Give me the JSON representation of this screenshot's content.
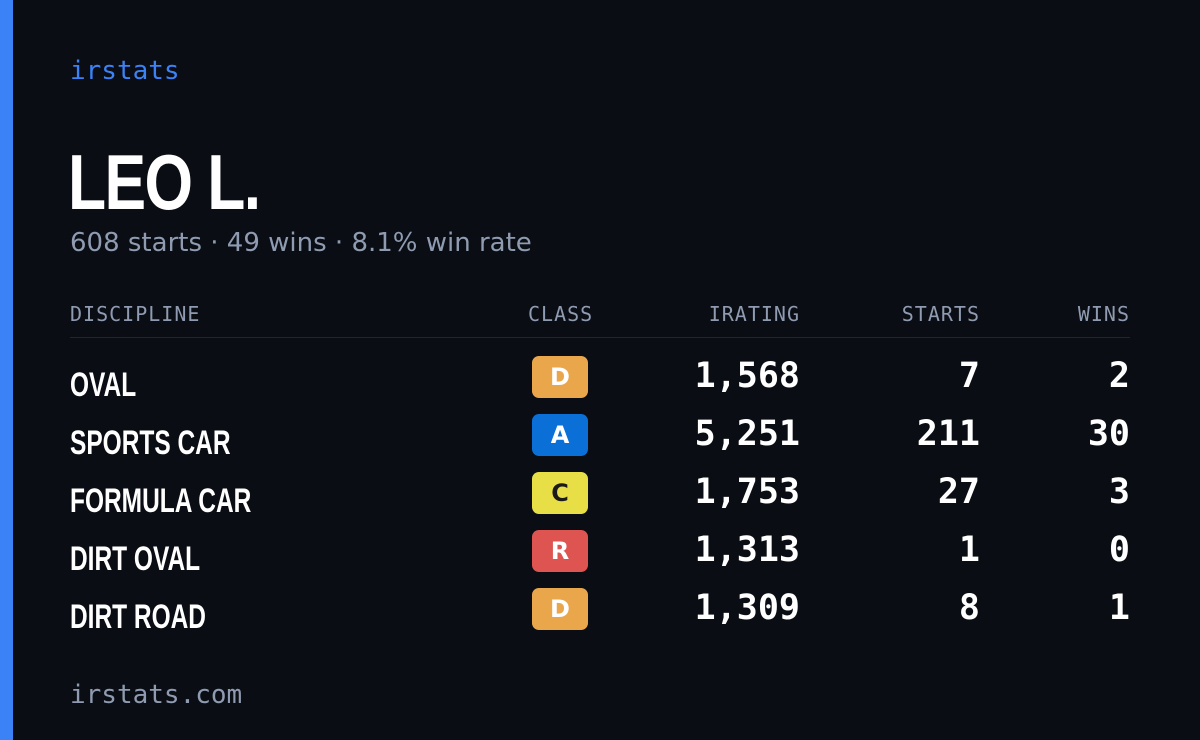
{
  "brand": "irstats",
  "driver": {
    "name": "LEO L.",
    "summary": "608 starts · 49 wins · 8.1% win rate"
  },
  "table": {
    "headers": {
      "discipline": "DISCIPLINE",
      "class": "CLASS",
      "irating": "IRATING",
      "starts": "STARTS",
      "wins": "WINS"
    },
    "rows": [
      {
        "discipline": "OVAL",
        "class": "D",
        "irating": "1,568",
        "starts": "7",
        "wins": "2"
      },
      {
        "discipline": "SPORTS CAR",
        "class": "A",
        "irating": "5,251",
        "starts": "211",
        "wins": "30"
      },
      {
        "discipline": "FORMULA CAR",
        "class": "C",
        "irating": "1,753",
        "starts": "27",
        "wins": "3"
      },
      {
        "discipline": "DIRT OVAL",
        "class": "R",
        "irating": "1,313",
        "starts": "1",
        "wins": "0"
      },
      {
        "discipline": "DIRT ROAD",
        "class": "D",
        "irating": "1,309",
        "starts": "8",
        "wins": "1"
      }
    ]
  },
  "class_colors": {
    "A": {
      "bg": "#0a6fd6",
      "fg": "#ffffff"
    },
    "C": {
      "bg": "#e8df46",
      "fg": "#1a1a1a"
    },
    "D": {
      "bg": "#eaa64b",
      "fg": "#ffffff"
    },
    "R": {
      "bg": "#dd5450",
      "fg": "#ffffff"
    }
  },
  "colors": {
    "background": "#0a0d14",
    "accent": "#3b82f6",
    "muted": "#8f9bb0",
    "text": "#ffffff"
  },
  "footer": "irstats.com"
}
